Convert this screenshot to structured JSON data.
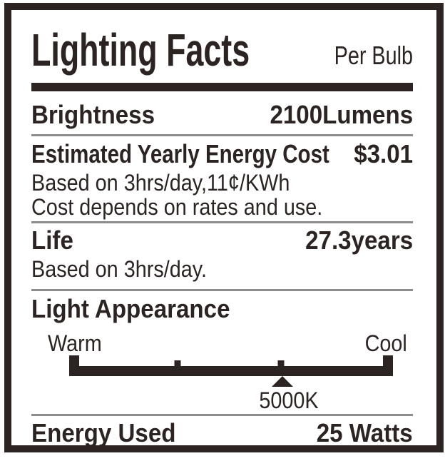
{
  "header": {
    "title": "Lighting Facts",
    "qualifier": "Per Bulb"
  },
  "brightness": {
    "label": "Brightness",
    "value": "2100Lumens"
  },
  "energy_cost": {
    "label": "Estimated Yearly Energy Cost",
    "value": "$3.01",
    "note1": "Based on 3hrs/day,11¢/KWh",
    "note2": "Cost depends on rates and use."
  },
  "life": {
    "label": "Life",
    "value": "27.3years",
    "note": "Based on 3hrs/day."
  },
  "light_appearance": {
    "label": "Light Appearance",
    "warm": "Warm",
    "cool": "Cool",
    "marker_value": "5000K",
    "tick1_style": "left:33.5%",
    "tick2_style": "left:65.4%",
    "marker_style": "left:65.9%",
    "marker_label_style": "left:67.8%"
  },
  "energy_used": {
    "label": "Energy Used",
    "value": "25 Watts"
  },
  "colors": {
    "ink": "#2b2422",
    "divider": "#8c8c8c",
    "background": "#ffffff"
  }
}
